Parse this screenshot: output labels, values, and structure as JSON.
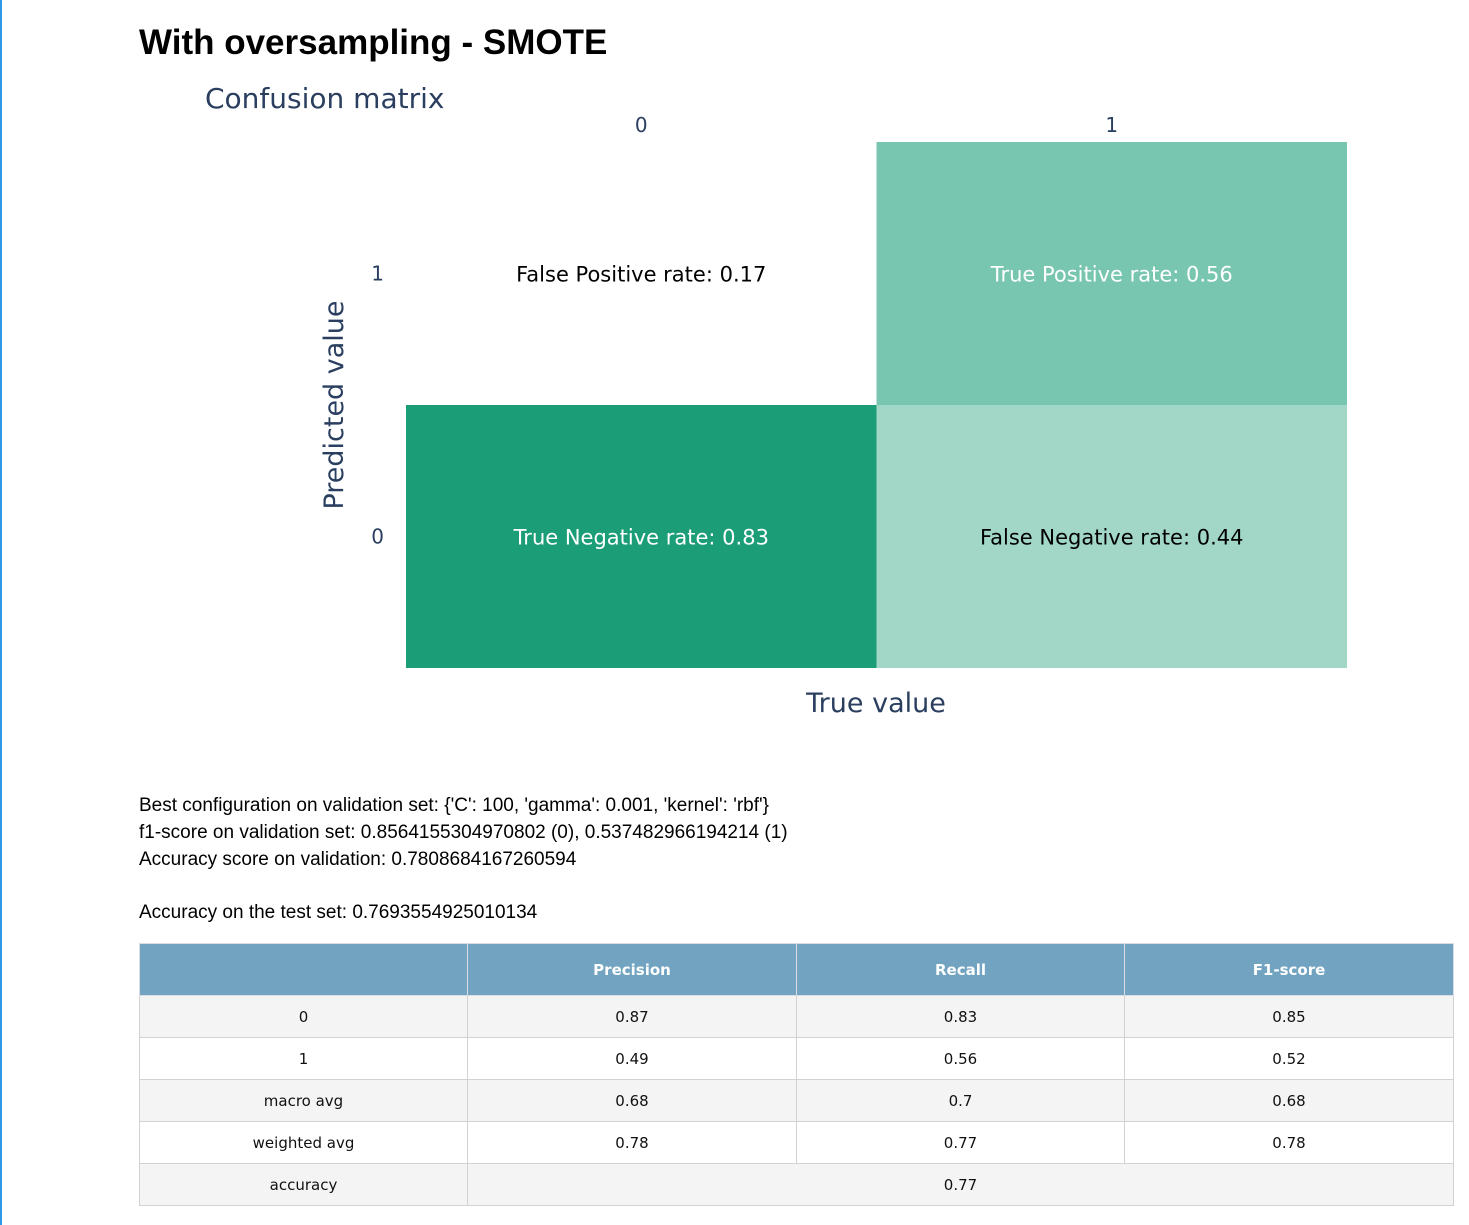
{
  "page": {
    "heading": "With oversampling - SMOTE"
  },
  "chart_data": {
    "type": "heatmap",
    "title": "Confusion matrix",
    "xlabel": "True value",
    "ylabel": "Predicted value",
    "x_categories": [
      "0",
      "1"
    ],
    "y_categories": [
      "0",
      "1"
    ],
    "cells": [
      {
        "x": "0",
        "y": "1",
        "value": 0.17,
        "label": "False Positive rate: 0.17"
      },
      {
        "x": "1",
        "y": "1",
        "value": 0.56,
        "label": "True Positive rate: 0.56"
      },
      {
        "x": "0",
        "y": "0",
        "value": 0.83,
        "label": "True Negative rate: 0.83"
      },
      {
        "x": "1",
        "y": "0",
        "value": 0.44,
        "label": "False Negative rate: 0.44"
      }
    ],
    "colorscale": [
      "#ffffff",
      "#1b9e77"
    ],
    "x_axis_position": "top",
    "grid": false,
    "legend": "none"
  },
  "metrics": {
    "best_config": "Best configuration on validation set: {'C': 100, 'gamma': 0.001, 'kernel': 'rbf'}",
    "f1_validation": "f1-score on validation set: 0.8564155304970802 (0), 0.537482966194214 (1)",
    "accuracy_validation": "Accuracy score on validation: 0.7808684167260594",
    "accuracy_test": "Accuracy on the test set: 0.7693554925010134"
  },
  "report_table": {
    "headers": [
      "",
      "Precision",
      "Recall",
      "F1-score"
    ],
    "rows": [
      [
        "0",
        "0.87",
        "0.83",
        "0.85"
      ],
      [
        "1",
        "0.49",
        "0.56",
        "0.52"
      ],
      [
        "macro avg",
        "0.68",
        "0.7",
        "0.68"
      ],
      [
        "weighted avg",
        "0.78",
        "0.77",
        "0.78"
      ]
    ],
    "accuracy_row": {
      "label": "accuracy",
      "value": "0.77"
    }
  },
  "colors": {
    "axis_text": "#2a3f5f",
    "table_header": "#72a4c2",
    "accent_rule": "#2f9be6"
  }
}
